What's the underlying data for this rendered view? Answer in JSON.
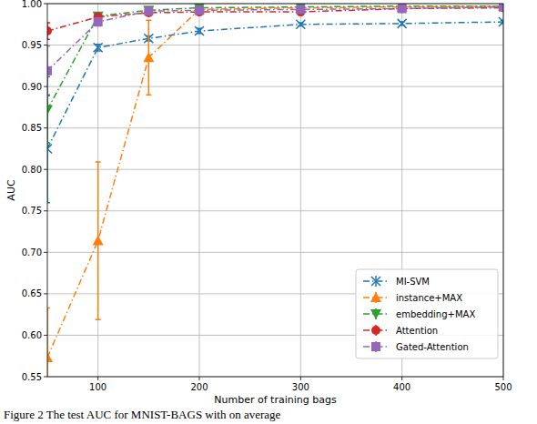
{
  "chart_data": {
    "type": "line",
    "x_label": "Number of training bags",
    "y_label": "AUC",
    "caption": "Figure 2 The test AUC for MNIST-BAGS with on average",
    "x": [
      50,
      100,
      150,
      200,
      300,
      400,
      500
    ],
    "xlim": [
      50,
      500
    ],
    "xticks": [
      100,
      200,
      300,
      400,
      500
    ],
    "ylim": [
      0.55,
      1.0
    ],
    "yticks": [
      {
        "value": 0.55,
        "label": "0.55"
      },
      {
        "value": 0.6,
        "label": "0.60"
      },
      {
        "value": 0.65,
        "label": "0.65"
      },
      {
        "value": 0.7,
        "label": "0.70"
      },
      {
        "value": 0.75,
        "label": "0.75"
      },
      {
        "value": 0.8,
        "label": "0.80"
      },
      {
        "value": 0.85,
        "label": "0.85"
      },
      {
        "value": 0.9,
        "label": "0.90"
      },
      {
        "value": 0.95,
        "label": "0.95"
      },
      {
        "value": 1.0,
        "label": "1.00"
      }
    ],
    "grid": true,
    "legend": "lower-right",
    "series": [
      {
        "name": "MI-SVM",
        "color": "#1f77b4",
        "marker": "x",
        "line_style": "dashdot",
        "values": [
          0.825,
          0.947,
          0.958,
          0.967,
          0.975,
          0.976,
          0.978
        ],
        "errors": [
          0.065,
          0.004,
          0.003,
          0.003,
          0.002,
          0.002,
          0.002
        ]
      },
      {
        "name": "instance+MAX",
        "color": "#ff7f0e",
        "marker": "triangle-up",
        "line_style": "dashdot",
        "values": [
          0.573,
          0.714,
          0.935,
          0.993,
          0.995,
          0.996,
          0.997
        ],
        "errors": [
          0.06,
          0.095,
          0.045,
          0.003,
          0.002,
          0.002,
          0.002
        ]
      },
      {
        "name": "embedding+MAX",
        "color": "#2ca02c",
        "marker": "triangle-down",
        "line_style": "dashdot",
        "values": [
          0.872,
          0.985,
          0.992,
          0.995,
          0.996,
          0.997,
          0.997
        ],
        "errors": [
          0.04,
          0.004,
          0.003,
          0.002,
          0.002,
          0.002,
          0.002
        ]
      },
      {
        "name": "Attention",
        "color": "#d62728",
        "marker": "circle",
        "line_style": "dashdot",
        "values": [
          0.967,
          0.984,
          0.989,
          0.99,
          0.99,
          0.994,
          0.995
        ],
        "errors": [
          0.01,
          0.004,
          0.003,
          0.003,
          0.002,
          0.002,
          0.002
        ]
      },
      {
        "name": "Gated-Attention",
        "color": "#9467bd",
        "marker": "square",
        "line_style": "dashdot",
        "values": [
          0.919,
          0.978,
          0.991,
          0.992,
          0.993,
          0.994,
          0.996
        ],
        "errors": [
          0.03,
          0.005,
          0.003,
          0.002,
          0.002,
          0.002,
          0.002
        ]
      }
    ]
  }
}
